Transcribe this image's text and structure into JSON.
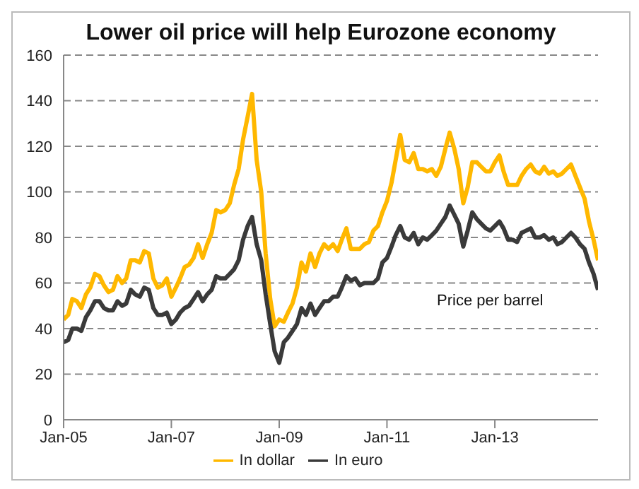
{
  "chart_data": {
    "type": "line",
    "title": "Lower oil price will help Eurozone economy",
    "x": [
      "2005-01",
      "2005-02",
      "2005-03",
      "2005-04",
      "2005-05",
      "2005-06",
      "2005-07",
      "2005-08",
      "2005-09",
      "2005-10",
      "2005-11",
      "2005-12",
      "2006-01",
      "2006-02",
      "2006-03",
      "2006-04",
      "2006-05",
      "2006-06",
      "2006-07",
      "2006-08",
      "2006-09",
      "2006-10",
      "2006-11",
      "2006-12",
      "2007-01",
      "2007-02",
      "2007-03",
      "2007-04",
      "2007-05",
      "2007-06",
      "2007-07",
      "2007-08",
      "2007-09",
      "2007-10",
      "2007-11",
      "2007-12",
      "2008-01",
      "2008-02",
      "2008-03",
      "2008-04",
      "2008-05",
      "2008-06",
      "2008-07",
      "2008-08",
      "2008-09",
      "2008-10",
      "2008-11",
      "2008-12",
      "2009-01",
      "2009-02",
      "2009-03",
      "2009-04",
      "2009-05",
      "2009-06",
      "2009-07",
      "2009-08",
      "2009-09",
      "2009-10",
      "2009-11",
      "2009-12",
      "2010-01",
      "2010-02",
      "2010-03",
      "2010-04",
      "2010-05",
      "2010-06",
      "2010-07",
      "2010-08",
      "2010-09",
      "2010-10",
      "2010-11",
      "2010-12",
      "2011-01",
      "2011-02",
      "2011-03",
      "2011-04",
      "2011-05",
      "2011-06",
      "2011-07",
      "2011-08",
      "2011-09",
      "2011-10",
      "2011-11",
      "2011-12",
      "2012-01",
      "2012-02",
      "2012-03",
      "2012-04",
      "2012-05",
      "2012-06",
      "2012-07",
      "2012-08",
      "2012-09",
      "2012-10",
      "2012-11",
      "2012-12",
      "2013-01",
      "2013-02",
      "2013-03",
      "2013-04",
      "2013-05",
      "2013-06",
      "2013-07",
      "2013-08",
      "2013-09",
      "2013-10",
      "2013-11",
      "2013-12",
      "2014-01",
      "2014-02",
      "2014-03",
      "2014-04",
      "2014-05",
      "2014-06",
      "2014-07",
      "2014-08",
      "2014-09",
      "2014-10",
      "2014-11",
      "2014-12"
    ],
    "series": [
      {
        "name": "In dollar",
        "color": "#ffb800",
        "values": [
          44,
          46,
          53,
          52,
          49,
          55,
          58,
          64,
          63,
          59,
          56,
          57,
          63,
          60,
          62,
          70,
          70,
          69,
          74,
          73,
          62,
          58,
          59,
          62,
          54,
          58,
          62,
          67,
          68,
          71,
          77,
          71,
          77,
          82,
          92,
          91,
          92,
          95,
          103,
          110,
          123,
          133,
          143,
          114,
          100,
          73,
          53,
          41,
          44,
          43,
          47,
          51,
          58,
          69,
          65,
          73,
          67,
          73,
          77,
          75,
          77,
          74,
          79,
          84,
          75,
          75,
          75,
          77,
          78,
          83,
          85,
          91,
          96,
          104,
          114,
          125,
          114,
          113,
          117,
          110,
          110,
          109,
          110,
          107,
          111,
          119,
          126,
          119,
          110,
          95,
          102,
          113,
          113,
          111,
          109,
          109,
          113,
          116,
          109,
          103,
          103,
          103,
          107,
          110,
          112,
          109,
          108,
          111,
          108,
          109,
          107,
          108,
          110,
          112,
          107,
          102,
          97,
          87,
          79,
          70
        ]
      },
      {
        "name": "In euro",
        "color": "#3a3a3a",
        "values": [
          34,
          35,
          40,
          40,
          39,
          45,
          48,
          52,
          52,
          49,
          48,
          48,
          52,
          50,
          51,
          57,
          55,
          54,
          58,
          57,
          49,
          46,
          46,
          47,
          42,
          44,
          47,
          49,
          50,
          53,
          56,
          52,
          55,
          57,
          63,
          62,
          62,
          64,
          66,
          70,
          79,
          85,
          89,
          77,
          70,
          55,
          42,
          30,
          25,
          34,
          36,
          39,
          42,
          49,
          46,
          51,
          46,
          49,
          52,
          52,
          54,
          54,
          58,
          63,
          61,
          62,
          59,
          60,
          60,
          60,
          62,
          69,
          71,
          76,
          81,
          85,
          80,
          79,
          82,
          77,
          80,
          79,
          81,
          83,
          86,
          89,
          94,
          90,
          86,
          76,
          83,
          91,
          88,
          86,
          84,
          83,
          85,
          87,
          84,
          79,
          79,
          78,
          82,
          83,
          84,
          80,
          80,
          81,
          79,
          80,
          77,
          78,
          80,
          82,
          80,
          77,
          75,
          69,
          64,
          57
        ]
      }
    ],
    "xlim": [
      "2005-01",
      "2014-12"
    ],
    "xticks": [
      {
        "value": "2005-01",
        "label": "Jan-05"
      },
      {
        "value": "2007-01",
        "label": "Jan-07"
      },
      {
        "value": "2009-01",
        "label": "Jan-09"
      },
      {
        "value": "2011-01",
        "label": "Jan-11"
      },
      {
        "value": "2013-01",
        "label": "Jan-13"
      }
    ],
    "ylim": [
      0,
      160
    ],
    "yticks": [
      0,
      20,
      40,
      60,
      80,
      100,
      120,
      140,
      160
    ],
    "grid": "y",
    "legend": "bottom",
    "line_style": "solid",
    "marker": "none",
    "annotations": [
      "Price per barrel"
    ]
  }
}
